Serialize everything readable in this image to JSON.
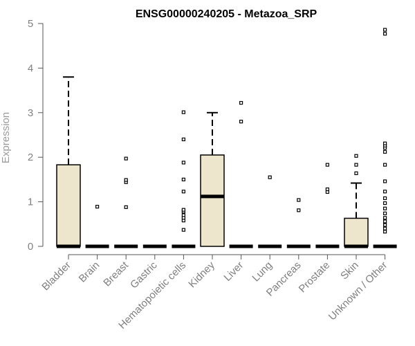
{
  "chart_data": {
    "type": "boxplot",
    "title": "ENSG00000240205 - Metazoa_SRP",
    "xlabel": "",
    "ylabel": "Expression",
    "ylim": [
      0,
      5
    ],
    "yticks": [
      0,
      1,
      2,
      3,
      4,
      5
    ],
    "box_fill": "#ede6cc",
    "categories": [
      "Bladder",
      "Brain",
      "Breast",
      "Gastric",
      "Hematopoietic cells",
      "Kidney",
      "Liver",
      "Lung",
      "Pancreas",
      "Prostate",
      "Skin",
      "Unknown / Other"
    ],
    "boxes": [
      {
        "q1": 0,
        "median": 0,
        "q3": 1.83,
        "whisker_low": 0,
        "whisker_high": 3.8,
        "outliers": []
      },
      {
        "q1": 0,
        "median": 0,
        "q3": 0,
        "whisker_low": 0,
        "whisker_high": 0,
        "outliers": [
          0.89
        ]
      },
      {
        "q1": 0,
        "median": 0,
        "q3": 0,
        "whisker_low": 0,
        "whisker_high": 0,
        "outliers": [
          0.88,
          1.44,
          1.49,
          1.97
        ]
      },
      {
        "q1": 0,
        "median": 0,
        "q3": 0,
        "whisker_low": 0,
        "whisker_high": 0,
        "outliers": []
      },
      {
        "q1": 0,
        "median": 0,
        "q3": 0,
        "whisker_low": 0,
        "whisker_high": 0,
        "outliers": [
          0.37,
          0.58,
          0.64,
          0.7,
          0.78,
          0.82,
          1.23,
          1.5,
          1.88,
          2.4,
          3.01
        ]
      },
      {
        "q1": 0,
        "median": 1.12,
        "q3": 2.05,
        "whisker_low": 0,
        "whisker_high": 3.0,
        "outliers": []
      },
      {
        "q1": 0,
        "median": 0,
        "q3": 0,
        "whisker_low": 0,
        "whisker_high": 0,
        "outliers": [
          2.8,
          3.22
        ]
      },
      {
        "q1": 0,
        "median": 0,
        "q3": 0,
        "whisker_low": 0,
        "whisker_high": 0,
        "outliers": [
          1.55
        ]
      },
      {
        "q1": 0,
        "median": 0,
        "q3": 0,
        "whisker_low": 0,
        "whisker_high": 0,
        "outliers": [
          0.81,
          1.04
        ]
      },
      {
        "q1": 0,
        "median": 0,
        "q3": 0,
        "whisker_low": 0,
        "whisker_high": 0,
        "outliers": [
          1.22,
          1.28,
          1.83
        ]
      },
      {
        "q1": 0,
        "median": 0,
        "q3": 0.63,
        "whisker_low": 0,
        "whisker_high": 1.42,
        "outliers": [
          1.64,
          1.83,
          2.03
        ]
      },
      {
        "q1": 0,
        "median": 0,
        "q3": 0,
        "whisker_low": 0,
        "whisker_high": 0,
        "outliers": [
          0.33,
          0.4,
          0.48,
          0.56,
          0.64,
          0.74,
          0.85,
          0.97,
          1.08,
          1.23,
          1.46,
          1.83,
          2.12,
          2.21,
          2.26,
          2.31,
          4.77,
          4.86
        ]
      }
    ]
  }
}
